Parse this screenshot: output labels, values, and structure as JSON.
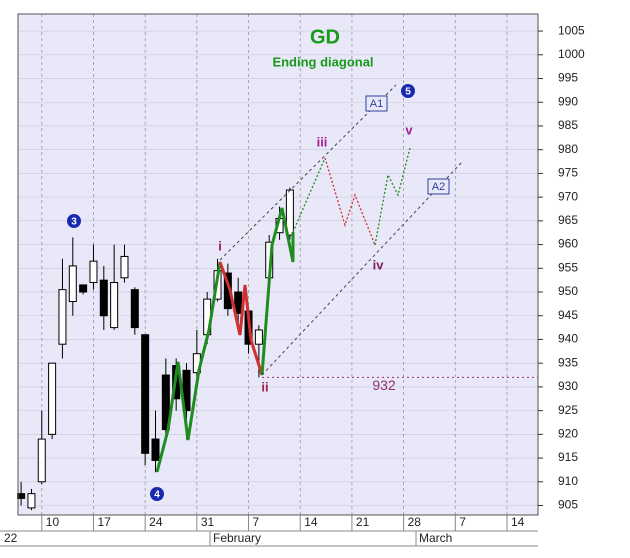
{
  "chart_data": {
    "type": "candlestick",
    "title": "GD",
    "subtitle": "Ending diagonal",
    "xlim": [
      -2.3,
      48
    ],
    "xticks": [
      {
        "value": 0,
        "label": "10"
      },
      {
        "value": 5,
        "label": "17"
      },
      {
        "value": 10,
        "label": "24"
      },
      {
        "value": 15,
        "label": "31"
      },
      {
        "value": 20,
        "label": "7"
      },
      {
        "value": 25,
        "label": "14"
      },
      {
        "value": 30,
        "label": "21"
      },
      {
        "value": 35,
        "label": "28"
      },
      {
        "value": 40,
        "label": "7"
      },
      {
        "value": 45,
        "label": "14"
      }
    ],
    "month_labels": [
      "22",
      "February",
      "March"
    ],
    "ylim": [
      903,
      1008.6
    ],
    "yticks": [
      905,
      910,
      915,
      920,
      925,
      930,
      935,
      940,
      945,
      950,
      955,
      960,
      965,
      970,
      975,
      980,
      985,
      990,
      995,
      1000,
      1005
    ],
    "grid": true,
    "up_color": "#ffffff",
    "down_color": "#000000",
    "x": [
      -2,
      -1,
      0,
      1,
      2,
      3,
      4,
      5,
      6,
      7,
      8,
      9,
      10,
      11,
      12,
      13,
      14,
      15,
      16,
      17,
      18,
      19,
      20,
      21,
      22,
      23,
      24
    ],
    "open": [
      907.5,
      904.5,
      910,
      920,
      939,
      948,
      951.5,
      952,
      952.5,
      942.5,
      953,
      950.5,
      941,
      919,
      932.5,
      934.5,
      933.5,
      933,
      941,
      948.5,
      954,
      950,
      946,
      939,
      953,
      962.5,
      962
    ],
    "high": [
      910,
      908.5,
      925,
      935,
      957,
      961.5,
      951.5,
      960,
      955.5,
      960,
      960,
      951,
      941,
      925,
      936,
      936,
      935,
      942,
      950,
      957,
      956,
      953,
      947,
      943,
      962,
      968,
      972
    ],
    "low": [
      905,
      904,
      909.5,
      919,
      936,
      945,
      949.5,
      950.5,
      942,
      942,
      952,
      941,
      913.5,
      912,
      919,
      925,
      919,
      932,
      939,
      948,
      945,
      943,
      937,
      932,
      951,
      961,
      961
    ],
    "close": [
      906.5,
      907.5,
      919,
      935,
      950.5,
      955.5,
      950,
      956.5,
      945,
      952,
      957.5,
      942.5,
      916,
      914.5,
      921,
      927.5,
      925,
      937,
      948.5,
      954.5,
      946.5,
      945.5,
      939,
      942,
      960.5,
      965.5,
      971.5
    ],
    "support_level": 932,
    "wave_labels": [
      "i",
      "ii",
      "iii",
      "iv",
      "v"
    ],
    "wave_counts": [
      "3",
      "4",
      "5"
    ],
    "trendline_labels": [
      "A1",
      "A2"
    ]
  }
}
